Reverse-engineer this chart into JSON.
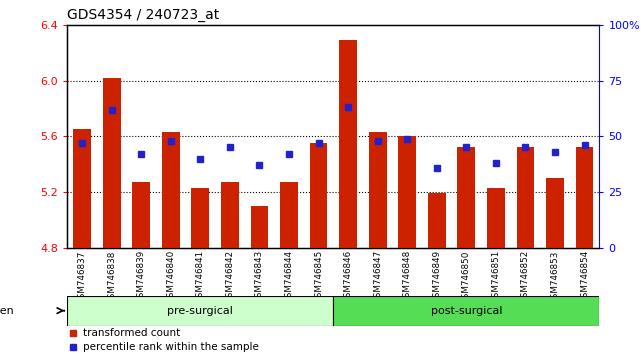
{
  "title": "GDS4354 / 240723_at",
  "samples": [
    "GSM746837",
    "GSM746838",
    "GSM746839",
    "GSM746840",
    "GSM746841",
    "GSM746842",
    "GSM746843",
    "GSM746844",
    "GSM746845",
    "GSM746846",
    "GSM746847",
    "GSM746848",
    "GSM746849",
    "GSM746850",
    "GSM746851",
    "GSM746852",
    "GSM746853",
    "GSM746854"
  ],
  "transformed_count": [
    5.65,
    6.02,
    5.27,
    5.63,
    5.23,
    5.27,
    5.1,
    5.27,
    5.55,
    6.29,
    5.63,
    5.6,
    5.19,
    5.52,
    5.23,
    5.52,
    5.3,
    5.52
  ],
  "percentile_rank": [
    47,
    62,
    42,
    48,
    40,
    45,
    37,
    42,
    47,
    63,
    48,
    49,
    36,
    45,
    38,
    45,
    43,
    46
  ],
  "ylim_left": [
    4.8,
    6.4
  ],
  "ylim_right": [
    0,
    100
  ],
  "yticks_left": [
    4.8,
    5.2,
    5.6,
    6.0,
    6.4
  ],
  "yticks_right": [
    0,
    25,
    50,
    75,
    100
  ],
  "ytick_labels_right": [
    "0",
    "25",
    "50",
    "75",
    "100%"
  ],
  "bar_color": "#cc2200",
  "square_color": "#2222cc",
  "pre_surgical_color": "#ccffcc",
  "post_surgical_color": "#55dd55",
  "xlabel_area_color": "#cccccc",
  "baseline": 4.8,
  "n_pre": 9,
  "n_post": 9
}
